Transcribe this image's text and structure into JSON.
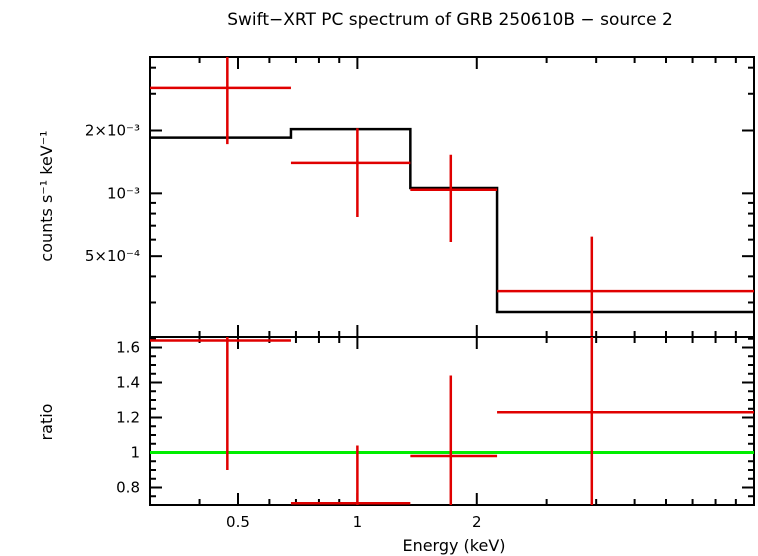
{
  "chart_data": [
    {
      "type": "scatter",
      "panel": "spectrum",
      "title": "Swift−XRT PC spectrum of GRB 250610B − source 2",
      "ylabel": "counts s⁻¹ keV⁻¹",
      "y_scale": "log",
      "x_scale": "log",
      "ylim": [
        0.000205,
        0.0045
      ],
      "y_ticks": [
        {
          "value": 0.002,
          "label": "2×10⁻³"
        },
        {
          "value": 0.001,
          "label": "10⁻³"
        },
        {
          "value": 0.0005,
          "label": "5×10⁻⁴"
        }
      ],
      "data_points": [
        {
          "x": 0.47,
          "xlo": 0.3,
          "xhi": 0.68,
          "y": 0.0032,
          "ylo": 0.00172,
          "yhi": 0.0046
        },
        {
          "x": 1.0,
          "xlo": 0.68,
          "xhi": 1.36,
          "y": 0.0014,
          "ylo": 0.00077,
          "yhi": 0.00205
        },
        {
          "x": 1.72,
          "xlo": 1.36,
          "xhi": 2.25,
          "y": 0.00104,
          "ylo": 0.000585,
          "yhi": 0.00153
        },
        {
          "x": 3.9,
          "xlo": 2.25,
          "xhi": 10.0,
          "y": 0.00034,
          "ylo": 0.0001,
          "yhi": 0.00062
        }
      ],
      "model_steps": [
        {
          "xlo": 0.3,
          "xhi": 0.68,
          "y": 0.00185
        },
        {
          "xlo": 0.68,
          "xhi": 1.36,
          "y": 0.00203
        },
        {
          "xlo": 1.36,
          "xhi": 2.25,
          "y": 0.00106
        },
        {
          "xlo": 2.25,
          "xhi": 10.0,
          "y": 0.00027
        }
      ],
      "colors": {
        "data": "#e00000",
        "model": "#000000"
      }
    },
    {
      "type": "scatter",
      "panel": "ratio",
      "xlabel": "Energy (keV)",
      "ylabel": "ratio",
      "x_scale": "log",
      "xlim": [
        0.3,
        10.0
      ],
      "ylim": [
        0.7,
        1.66
      ],
      "x_ticks": [
        {
          "value": 0.5,
          "label": "0.5"
        },
        {
          "value": 1,
          "label": "1"
        },
        {
          "value": 2,
          "label": "2"
        }
      ],
      "y_ticks": [
        {
          "value": 0.8,
          "label": "0.8"
        },
        {
          "value": 1.0,
          "label": "1"
        },
        {
          "value": 1.2,
          "label": "1.2"
        },
        {
          "value": 1.4,
          "label": "1.4"
        },
        {
          "value": 1.6,
          "label": "1.6"
        }
      ],
      "data_points": [
        {
          "x": 0.47,
          "xlo": 0.3,
          "xhi": 0.68,
          "y": 1.64,
          "ylo": 0.9,
          "yhi": 1.7
        },
        {
          "x": 1.0,
          "xlo": 0.68,
          "xhi": 1.36,
          "y": 0.71,
          "ylo": 0.6,
          "yhi": 1.04
        },
        {
          "x": 1.72,
          "xlo": 1.36,
          "xhi": 2.25,
          "y": 0.98,
          "ylo": 0.6,
          "yhi": 1.44
        },
        {
          "x": 3.9,
          "xlo": 2.25,
          "xhi": 10.0,
          "y": 1.23,
          "ylo": 0.6,
          "yhi": 1.7
        }
      ],
      "reference_line": 1.0,
      "colors": {
        "data": "#e00000",
        "reference": "#00ee00"
      }
    }
  ]
}
